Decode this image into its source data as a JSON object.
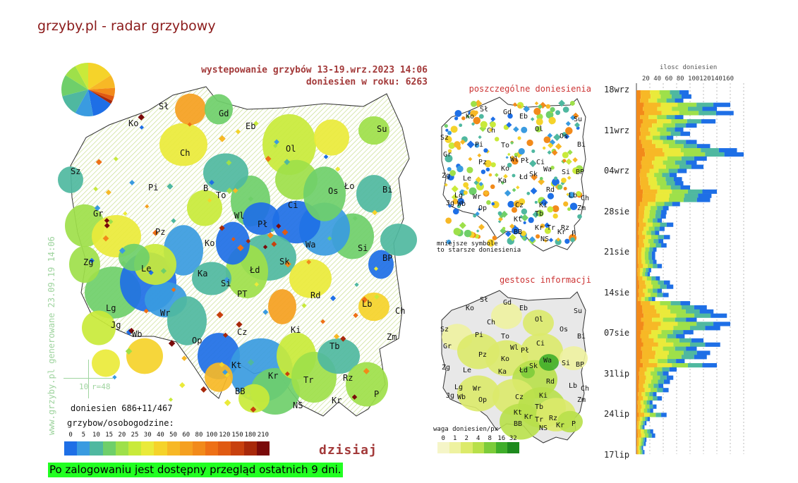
{
  "page": {
    "title": "grzyby.pl - radar grzybowy"
  },
  "main_map": {
    "title_line1": "wystepowanie grzybów 13-19.wrz.2023 14:06",
    "title_line2": "doniesien w roku: 6263",
    "generated": "www.grzyby.pl generowane 23.09.19 14:06",
    "scale_value": "10",
    "scale_radius": "r=48",
    "reports": "doniesien 686+11/467",
    "legend_title": "grzybow/osobogodzine:",
    "legend_values": [
      "0",
      "5",
      "10",
      "15",
      "20",
      "25",
      "30",
      "40",
      "50",
      "60",
      "80",
      "100",
      "120",
      "150",
      "180",
      "210"
    ],
    "legend_colors": [
      "#1e6fe6",
      "#3a9be0",
      "#4fb8a0",
      "#6fcf6a",
      "#9ee04a",
      "#c9ea3a",
      "#eaea3a",
      "#f5d32a",
      "#f7b826",
      "#f5a020",
      "#f28a1a",
      "#ee7016",
      "#e05a12",
      "#c8400e",
      "#a8280a",
      "#7a0a0a"
    ],
    "today_label": "dzisiaj",
    "pie": [
      {
        "color": "#f5d32a",
        "fraction": 0.16
      },
      {
        "color": "#f7b826",
        "fraction": 0.08
      },
      {
        "color": "#f28a1a",
        "fraction": 0.05
      },
      {
        "color": "#e05a12",
        "fraction": 0.03
      },
      {
        "color": "#a8280a",
        "fraction": 0.02
      },
      {
        "color": "#1e6fe6",
        "fraction": 0.13
      },
      {
        "color": "#3a9be0",
        "fraction": 0.11
      },
      {
        "color": "#4fb8a0",
        "fraction": 0.13
      },
      {
        "color": "#6fcf6a",
        "fraction": 0.13
      },
      {
        "color": "#9ee04a",
        "fraction": 0.08
      },
      {
        "color": "#c9ea3a",
        "fraction": 0.08
      }
    ],
    "regions": [
      "Sł",
      "Gd",
      "Eb",
      "Ko",
      "Su",
      "Ol",
      "Ch",
      "Sz",
      "Pi",
      "B",
      "To",
      "Ło",
      "Bi",
      "Os",
      "Gr",
      "Wl",
      "Pł",
      "Ci",
      "Pz",
      "Ko",
      "Wa",
      "Si",
      "Zg",
      "Le",
      "Łd",
      "Sk",
      "BP",
      "Ka",
      "Si",
      "PT",
      "Rd",
      "Lg",
      "Wr",
      "Lb",
      "Ch",
      "Jg",
      "Wb",
      "Ki",
      "Op",
      "Cz",
      "Tb",
      "Zm",
      "Kt",
      "Kr",
      "Tr",
      "Rz",
      "BB",
      "NS",
      "Kr",
      "P"
    ]
  },
  "individual_map": {
    "caption": "poszczególne doniesienia",
    "note_line1": "mniejsze symbole",
    "note_line2": "to starsze doniesienia",
    "regions": [
      "Sł",
      "Gd",
      "Eb",
      "Ko",
      "Ch",
      "Ol",
      "Su",
      "Sz",
      "Pi",
      "To",
      "Os",
      "Bi",
      "Gr",
      "Wl",
      "Pł",
      "Ci",
      "Pz",
      "Ko",
      "Wa",
      "Si",
      "BP",
      "Zg",
      "Le",
      "Łd",
      "Sk",
      "Ka",
      "Lg",
      "Wr",
      "Rd",
      "Lb",
      "Ch",
      "Jg",
      "Wb",
      "Op",
      "Cz",
      "Ki",
      "Tb",
      "Zm",
      "Kt",
      "BB",
      "Kr",
      "Tr",
      "Rz",
      "NS",
      "Kr",
      "P"
    ]
  },
  "density_map": {
    "caption": "gestosc informacji",
    "weight_title": "waga doniesien/px",
    "weight_values": [
      "0",
      "1",
      "2",
      "4",
      "8",
      "16",
      "32"
    ],
    "weight_colors": [
      "#f5f5c8",
      "#eef2a0",
      "#dcea6a",
      "#b8e04a",
      "#7ccc3a",
      "#3fae2a",
      "#1e8a1e"
    ],
    "regions": [
      "Sł",
      "Gd",
      "Eb",
      "Ko",
      "Ch",
      "Ol",
      "Su",
      "Sz",
      "Pi",
      "To",
      "Os",
      "Bi",
      "Gr",
      "Wl",
      "Pł",
      "Ci",
      "Pz",
      "Ko",
      "Wa",
      "Si",
      "BP",
      "Zg",
      "Le",
      "Łd",
      "Sk",
      "Ka",
      "Lg",
      "Wr",
      "Rd",
      "Lb",
      "Ch",
      "Jg",
      "Wb",
      "Op",
      "Cz",
      "Ki",
      "Tb",
      "Zm",
      "Kt",
      "Kr",
      "Tr",
      "Rz",
      "BB",
      "NS",
      "Kr",
      "P"
    ]
  },
  "histogram": {
    "axis_title": "ilosc doniesien",
    "x_ticks": "20 40 60 80 100120140160",
    "dates": [
      "18wrz",
      "11wrz",
      "04wrz",
      "28sie",
      "21sie",
      "14sie",
      "07sie",
      "31lip",
      "24lip",
      "17lip"
    ],
    "daily_reports": [
      78,
      82,
      70,
      140,
      120,
      145,
      70,
      118,
      90,
      70,
      80,
      55,
      90,
      110,
      150,
      160,
      105,
      90,
      100,
      75,
      60,
      68,
      70,
      80,
      120,
      112,
      110,
      65,
      48,
      45,
      44,
      38,
      55,
      42,
      34,
      50,
      40,
      45,
      30,
      28,
      28,
      30,
      38,
      22,
      20,
      35,
      50,
      55,
      38,
      48,
      28,
      80,
      105,
      115,
      135,
      90,
      140,
      125,
      85,
      72,
      100,
      125,
      90,
      110,
      105,
      72,
      120,
      60,
      48,
      55,
      50,
      40,
      48,
      30,
      38,
      24,
      30,
      25,
      45,
      20,
      15,
      12,
      25,
      28,
      15,
      14,
      10,
      12
    ]
  }
}
